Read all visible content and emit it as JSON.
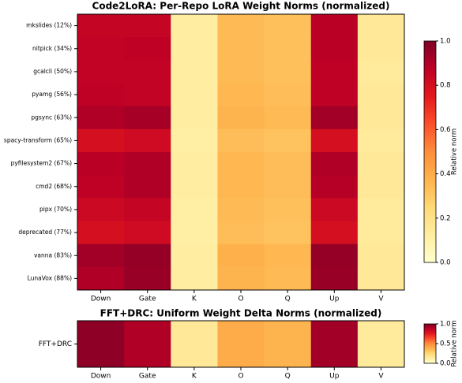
{
  "chart_data": [
    {
      "type": "heatmap",
      "title": "Code2LoRA: Per-Repo LoRA Weight Norms (normalized)",
      "columns": [
        "Down",
        "Gate",
        "K",
        "O",
        "Q",
        "Up",
        "V"
      ],
      "rows": [
        "mkslides (12%)",
        "nitpick (34%)",
        "gcalcli (50%)",
        "pyamg (56%)",
        "pgsync (63%)",
        "spacy-transform (65%)",
        "pyfilesystem2 (67%)",
        "cmd2 (68%)",
        "pipx (70%)",
        "deprecated (77%)",
        "vanna (83%)",
        "LunaVox (88%)"
      ],
      "z": [
        [
          0.85,
          0.85,
          0.12,
          0.35,
          0.33,
          0.88,
          0.15
        ],
        [
          0.86,
          0.87,
          0.12,
          0.35,
          0.33,
          0.88,
          0.15
        ],
        [
          0.86,
          0.86,
          0.12,
          0.35,
          0.33,
          0.87,
          0.14
        ],
        [
          0.87,
          0.86,
          0.12,
          0.36,
          0.34,
          0.87,
          0.15
        ],
        [
          0.9,
          0.92,
          0.12,
          0.37,
          0.35,
          0.93,
          0.15
        ],
        [
          0.8,
          0.82,
          0.11,
          0.34,
          0.32,
          0.8,
          0.14
        ],
        [
          0.88,
          0.9,
          0.12,
          0.36,
          0.34,
          0.9,
          0.15
        ],
        [
          0.87,
          0.9,
          0.12,
          0.36,
          0.34,
          0.89,
          0.15
        ],
        [
          0.83,
          0.85,
          0.11,
          0.35,
          0.33,
          0.83,
          0.14
        ],
        [
          0.8,
          0.82,
          0.11,
          0.34,
          0.32,
          0.8,
          0.14
        ],
        [
          0.93,
          0.96,
          0.12,
          0.38,
          0.36,
          0.96,
          0.15
        ],
        [
          0.9,
          0.95,
          0.12,
          0.37,
          0.35,
          0.95,
          0.15
        ]
      ],
      "colormap": "YlOrRd",
      "zlim": [
        0,
        1
      ],
      "zticks": [
        {
          "value": 0,
          "label": "0.0"
        },
        {
          "value": 0.2,
          "label": "0.2"
        },
        0.4,
        0.6,
        0.8,
        {
          "value": 1,
          "label": "1.0"
        }
      ],
      "colorbar_label": "Relative norm"
    },
    {
      "type": "heatmap",
      "title": "FFT+DRC: Uniform Weight Delta Norms (normalized)",
      "columns": [
        "Down",
        "Gate",
        "K",
        "O",
        "Q",
        "Up",
        "V"
      ],
      "rows": [
        "FFT+DRC"
      ],
      "z": [
        [
          0.97,
          0.9,
          0.15,
          0.4,
          0.37,
          0.93,
          0.14
        ]
      ],
      "colormap": "YlOrRd",
      "zlim": [
        0,
        1
      ],
      "zticks": [
        {
          "value": 0,
          "label": "0.0"
        },
        0.5,
        {
          "value": 1,
          "label": "1.0"
        }
      ],
      "colorbar_label": "Relative norm"
    }
  ]
}
